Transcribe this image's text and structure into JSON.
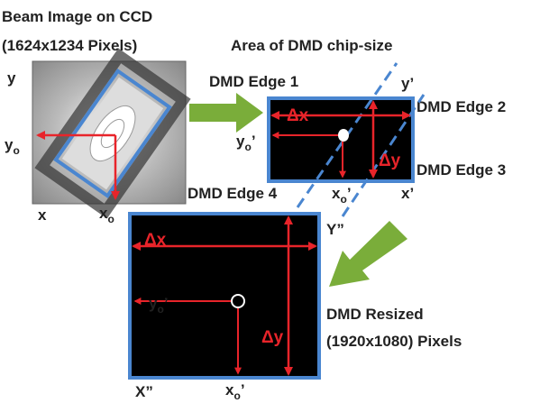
{
  "ccd": {
    "title": "Beam Image on CCD",
    "size": "(1624x1234 Pixels)",
    "axis_y": "y",
    "axis_x": "x",
    "origin_y": {
      "base": "y",
      "sub": "o"
    },
    "origin_x": {
      "base": "x",
      "sub": "o"
    }
  },
  "dmd_chip": {
    "title": "Area of DMD chip-size",
    "edges": [
      "DMD Edge 1",
      "DMD Edge 2",
      "DMD Edge 3",
      "DMD Edge 4"
    ],
    "axis_y": "y’",
    "axis_x": "x’",
    "delta_x": "Δx",
    "delta_y": "Δy",
    "origin_y": {
      "base": "y",
      "sub": "o",
      "mark": "’"
    },
    "origin_x": {
      "base": "x",
      "sub": "o",
      "mark": "’"
    }
  },
  "dmd_resized": {
    "title": "DMD Resized",
    "size": "(1920x1080) Pixels",
    "axis_y": "Y”",
    "axis_x": "X”",
    "delta_x": "Δx",
    "delta_y": "Δy",
    "origin_y": {
      "base": "y",
      "sub": "o",
      "mark": "’"
    },
    "origin_x": {
      "base": "x",
      "sub": "o",
      "mark": "’"
    }
  }
}
